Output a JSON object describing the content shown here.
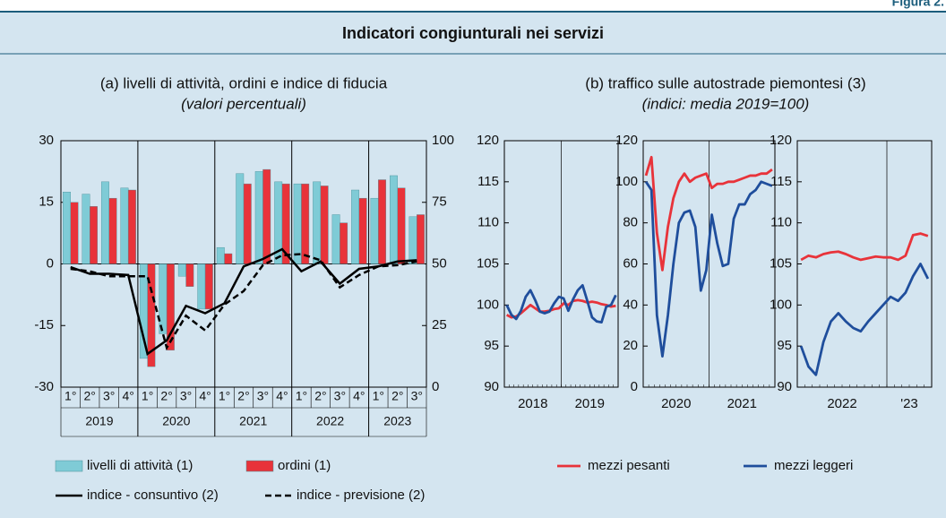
{
  "header": {
    "figure": "Figura 2.",
    "title": "Indicatori congiunturali nei servizi"
  },
  "chart_data": [
    {
      "type": "bar",
      "title": "(a) livelli di attività, ordini e indice di fiducia",
      "subtitle": "(valori percentuali)",
      "categories": [
        "1°",
        "2°",
        "3°",
        "4°",
        "1°",
        "2°",
        "3°",
        "4°",
        "1°",
        "2°",
        "3°",
        "4°",
        "1°",
        "2°",
        "3°",
        "4°",
        "1°",
        "2°",
        "3°"
      ],
      "years": [
        "2019",
        "2020",
        "2021",
        "2022",
        "2023"
      ],
      "ylim": [
        -30,
        30
      ],
      "yticks": [
        -30,
        -15,
        0,
        15,
        30
      ],
      "y2lim": [
        0,
        100
      ],
      "y2ticks": [
        0,
        25,
        50,
        75,
        100
      ],
      "series": [
        {
          "name": "livelli di attività (1)",
          "color": "#7fcbd6",
          "values": [
            17.5,
            17,
            20,
            18.5,
            -23,
            -17,
            -3,
            -11,
            4,
            22,
            22.5,
            20,
            19.5,
            20,
            12,
            18,
            16,
            21.5,
            11.5
          ]
        },
        {
          "name": "ordini (1)",
          "color": "#e8333a",
          "values": [
            15,
            14,
            16,
            18,
            -25,
            -21,
            -5.5,
            -11,
            2.5,
            19.5,
            23,
            19.5,
            19.5,
            19,
            10,
            16,
            20.5,
            18.5,
            12
          ]
        },
        {
          "name": "indice - consuntivo (2)",
          "color": "#000000",
          "kind": "line",
          "axis": "y2",
          "values": [
            48.7,
            46,
            46,
            45.5,
            13.5,
            19,
            33,
            30,
            34,
            49,
            52,
            56,
            47,
            51,
            42,
            48,
            49,
            51,
            51.5
          ]
        },
        {
          "name": "indice - previsione  (2)",
          "color": "#000000",
          "kind": "line",
          "dashed": true,
          "axis": "y2",
          "values": [
            48,
            47,
            45,
            45,
            45,
            16,
            29,
            23,
            33.5,
            39,
            49.5,
            53.5,
            54,
            51.5,
            40.5,
            45.5,
            49,
            49.5,
            51
          ]
        }
      ]
    },
    {
      "type": "line",
      "title": "(b) traffico sulle autostrade piemontesi (3)",
      "subtitle": "(indici: media 2019=100)",
      "xlabels": [
        "2018",
        "2019"
      ],
      "ylim": [
        90,
        120
      ],
      "yticks": [
        90,
        95,
        100,
        105,
        110,
        115,
        120
      ],
      "series": [
        {
          "name": "mezzi pesanti",
          "color": "#e8333a",
          "values": [
            98.8,
            98.5,
            98.6,
            99,
            99.5,
            100,
            99.6,
            99.2,
            99.2,
            99.3,
            99.5,
            99.6,
            100.2,
            100,
            100.5,
            100.6,
            100.5,
            100.3,
            100.4,
            100.3,
            100.1,
            100,
            99.8,
            99.9
          ]
        },
        {
          "name": "mezzi leggeri",
          "color": "#1f4e9c",
          "values": [
            100,
            98.8,
            98.3,
            99.3,
            101,
            101.8,
            100.6,
            99.2,
            99,
            99.2,
            100.2,
            101,
            100.8,
            99.3,
            100.7,
            101.8,
            102.4,
            100.5,
            98.5,
            98,
            97.9,
            99.8,
            100,
            101.2
          ]
        }
      ]
    },
    {
      "type": "line",
      "xlabels": [
        "2020",
        "2021"
      ],
      "ylim": [
        0,
        120
      ],
      "yticks": [
        0,
        20,
        40,
        60,
        80,
        100,
        120
      ],
      "series": [
        {
          "color": "#e8333a",
          "values": [
            103,
            112,
            75,
            57,
            78,
            92,
            100,
            104,
            100,
            102,
            103,
            104,
            97,
            99,
            99,
            100,
            100,
            101,
            102,
            103,
            103,
            104,
            104,
            106
          ]
        },
        {
          "color": "#1f4e9c",
          "values": [
            100,
            96,
            35,
            15,
            35,
            60,
            80,
            85,
            86,
            78,
            47,
            57,
            84,
            70,
            59,
            60,
            82,
            89,
            89,
            94,
            96,
            100,
            99,
            98
          ]
        }
      ]
    },
    {
      "type": "line",
      "xlabels": [
        "2022",
        "'23"
      ],
      "ylim": [
        90,
        120
      ],
      "yticks": [
        90,
        95,
        100,
        105,
        110,
        115,
        120
      ],
      "series": [
        {
          "color": "#e8333a",
          "values": [
            105.5,
            106,
            105.8,
            106.2,
            106.4,
            106.5,
            106.2,
            105.8,
            105.5,
            105.7,
            105.9,
            105.8,
            105.8,
            105.5,
            106,
            108.5,
            108.7,
            108.4
          ]
        },
        {
          "color": "#1f4e9c",
          "values": [
            95,
            92.5,
            91.5,
            95.5,
            98,
            99,
            98,
            97.2,
            96.8,
            98,
            99,
            100,
            101,
            100.5,
            101.5,
            103.5,
            105,
            103.2
          ]
        }
      ]
    }
  ]
}
